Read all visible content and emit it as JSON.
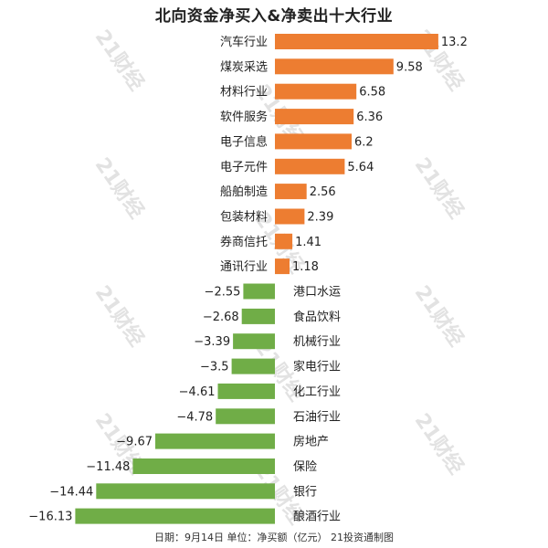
{
  "title": "北向资金净买入&净卖出十大行业",
  "footer": "日期：9月14日  单位：净买额（亿元）  21投资通制图",
  "watermark_text": "21财经",
  "colors": {
    "positive": "#ED7D31",
    "negative": "#70AD47"
  },
  "chart_data": {
    "type": "bar",
    "orientation": "horizontal",
    "title": "北向资金净买入&净卖出十大行业",
    "categories": [
      "汽车行业",
      "煤炭采选",
      "材料行业",
      "软件服务",
      "电子信息",
      "电子元件",
      "船舶制造",
      "包装材料",
      "券商信托",
      "通讯行业",
      "港口水运",
      "食品饮料",
      "机械行业",
      "家电行业",
      "化工行业",
      "石油行业",
      "房地产",
      "保险",
      "银行",
      "酿酒行业"
    ],
    "value_labels": [
      "13.2",
      "9.58",
      "6.58",
      "6.36",
      "6.2",
      "5.64",
      "2.56",
      "2.39",
      "1.41",
      "1.18",
      "−2.55",
      "−2.68",
      "−3.39",
      "−3.5",
      "−4.61",
      "−4.78",
      "−9.67",
      "−11.48",
      "−14.44",
      "−16.13"
    ],
    "values": [
      13.2,
      9.58,
      6.58,
      6.36,
      6.2,
      5.64,
      2.56,
      2.39,
      1.41,
      1.18,
      -2.55,
      -2.68,
      -3.39,
      -3.5,
      -4.61,
      -4.78,
      -9.67,
      -11.48,
      -14.44,
      -16.13
    ],
    "xlim": [
      -16.13,
      13.2
    ],
    "grid": false,
    "legend": "none"
  }
}
